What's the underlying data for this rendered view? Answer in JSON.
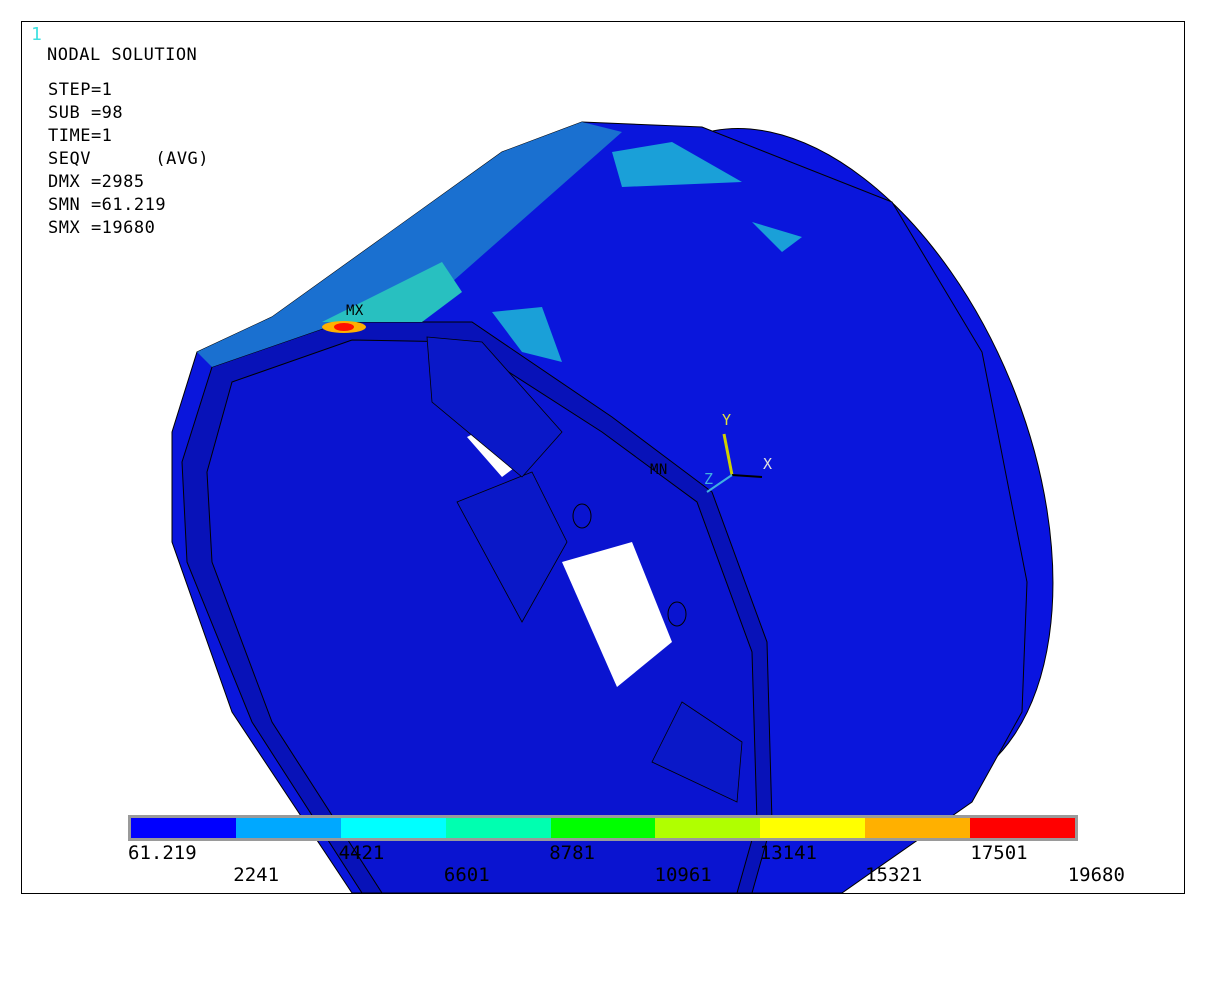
{
  "window_number": "1",
  "title": "NODAL SOLUTION",
  "info": [
    "STEP=1",
    "SUB =98",
    "TIME=1",
    "SEQV      (AVG)",
    "DMX =2985",
    "SMN =61.219",
    "SMX =19680"
  ],
  "markers": {
    "max": "MX",
    "min": "MN"
  },
  "triad": {
    "x": "X",
    "y": "Y",
    "z": "Z"
  },
  "legend": {
    "colors": [
      "#0000ff",
      "#00a8ff",
      "#00ffff",
      "#00ffb0",
      "#00ff00",
      "#b0ff00",
      "#ffff00",
      "#ffb000",
      "#ff0000"
    ],
    "labels_top": [
      "61.219",
      "4421",
      "8781",
      "13141",
      "17501"
    ],
    "labels_bottom": [
      "2241",
      "6601",
      "10961",
      "15321",
      "19680"
    ]
  },
  "model_colors": {
    "base": "#0a14d8",
    "dark": "#0610b0",
    "stress_low": "#1aa0d8",
    "stress_mid": "#28c8c0",
    "stress_max": "#ff2000"
  }
}
